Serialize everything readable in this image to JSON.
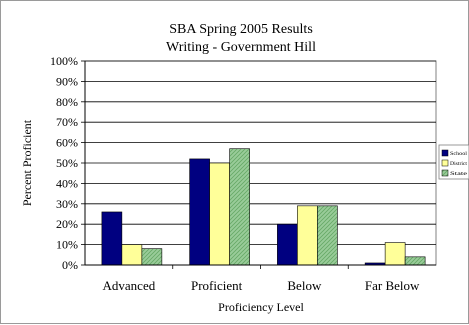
{
  "chart_data": {
    "type": "bar",
    "title": "SBA Spring 2005 Results",
    "subtitle": "Writing - Government Hill",
    "xlabel": "Proficiency Level",
    "ylabel": "Percent Proficient",
    "ylim": [
      0,
      100
    ],
    "yticks": [
      "0%",
      "10%",
      "20%",
      "30%",
      "40%",
      "50%",
      "60%",
      "70%",
      "80%",
      "90%",
      "100%"
    ],
    "categories": [
      "Advanced",
      "Proficient",
      "Below",
      "Far Below"
    ],
    "series": [
      {
        "name": "School",
        "values": [
          26,
          52,
          20,
          1
        ],
        "color": "#000080",
        "pattern": "solid"
      },
      {
        "name": "District",
        "values": [
          10,
          50,
          29,
          11
        ],
        "color": "#ffff99",
        "pattern": "solid"
      },
      {
        "name": "State",
        "values": [
          8,
          57,
          29,
          4
        ],
        "color": "#99cc99",
        "pattern": "hatch"
      }
    ],
    "grid": true,
    "legend_position": "right"
  }
}
